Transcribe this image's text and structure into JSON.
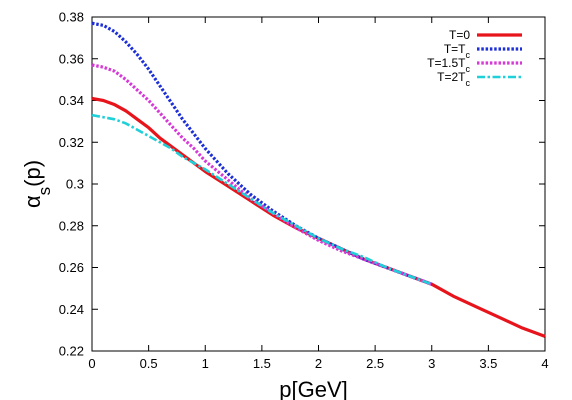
{
  "chart_data": {
    "type": "line",
    "xlabel": "p[GeV]",
    "ylabel": {
      "base": "α",
      "sub": "s",
      "suffix": "(p)"
    },
    "xlim": [
      0,
      4
    ],
    "ylim": [
      0.22,
      0.38
    ],
    "xticks": [
      0,
      0.5,
      1,
      1.5,
      2,
      2.5,
      3,
      3.5,
      4
    ],
    "yticks": [
      0.22,
      0.24,
      0.26,
      0.28,
      0.3,
      0.32,
      0.34,
      0.36,
      0.38
    ],
    "grid": false,
    "legend_position": "top-right",
    "series": [
      {
        "name": "T=0",
        "name_sub": "",
        "color": "#e8141c",
        "style": "solid",
        "x": [
          0,
          0.1,
          0.2,
          0.3,
          0.4,
          0.5,
          0.6,
          0.7,
          0.8,
          0.9,
          1.0,
          1.2,
          1.4,
          1.6,
          1.8,
          2.0,
          2.2,
          2.4,
          2.6,
          2.8,
          3.0,
          3.2,
          3.4,
          3.6,
          3.8,
          4.0
        ],
        "y": [
          0.341,
          0.34,
          0.338,
          0.335,
          0.331,
          0.327,
          0.322,
          0.318,
          0.314,
          0.31,
          0.306,
          0.299,
          0.292,
          0.285,
          0.279,
          0.274,
          0.269,
          0.264,
          0.26,
          0.256,
          0.252,
          0.246,
          0.241,
          0.236,
          0.231,
          0.227
        ]
      },
      {
        "name": "T=T",
        "name_sub": "c",
        "color": "#1d2fd6",
        "style": "dotted",
        "x": [
          0,
          0.1,
          0.2,
          0.3,
          0.4,
          0.5,
          0.6,
          0.7,
          0.8,
          0.9,
          1.0,
          1.2,
          1.4,
          1.6,
          1.8,
          2.0,
          2.2,
          2.4,
          2.6,
          2.8,
          3.0
        ],
        "y": [
          0.377,
          0.376,
          0.373,
          0.368,
          0.362,
          0.355,
          0.347,
          0.339,
          0.331,
          0.324,
          0.317,
          0.305,
          0.295,
          0.287,
          0.28,
          0.274,
          0.269,
          0.264,
          0.26,
          0.256,
          0.252
        ]
      },
      {
        "name": "T=1.5T",
        "name_sub": "c",
        "color": "#d63ad6",
        "style": "dotted",
        "x": [
          0,
          0.1,
          0.2,
          0.3,
          0.4,
          0.5,
          0.6,
          0.7,
          0.8,
          0.9,
          1.0,
          1.2,
          1.4,
          1.6,
          1.8,
          2.0,
          2.2,
          2.4,
          2.6,
          2.8,
          3.0
        ],
        "y": [
          0.357,
          0.356,
          0.354,
          0.35,
          0.345,
          0.34,
          0.334,
          0.328,
          0.322,
          0.317,
          0.311,
          0.302,
          0.293,
          0.286,
          0.279,
          0.273,
          0.268,
          0.264,
          0.26,
          0.256,
          0.252
        ]
      },
      {
        "name": "T=2T",
        "name_sub": "c",
        "color": "#1ed0d8",
        "style": "dashdot",
        "x": [
          0,
          0.1,
          0.2,
          0.3,
          0.4,
          0.5,
          0.6,
          0.7,
          0.8,
          0.9,
          1.0,
          1.2,
          1.4,
          1.6,
          1.8,
          2.0,
          2.2,
          2.4,
          2.6,
          2.8,
          3.0
        ],
        "y": [
          0.333,
          0.332,
          0.331,
          0.329,
          0.326,
          0.323,
          0.32,
          0.317,
          0.313,
          0.31,
          0.307,
          0.3,
          0.293,
          0.286,
          0.28,
          0.274,
          0.269,
          0.265,
          0.26,
          0.256,
          0.252
        ]
      }
    ]
  }
}
